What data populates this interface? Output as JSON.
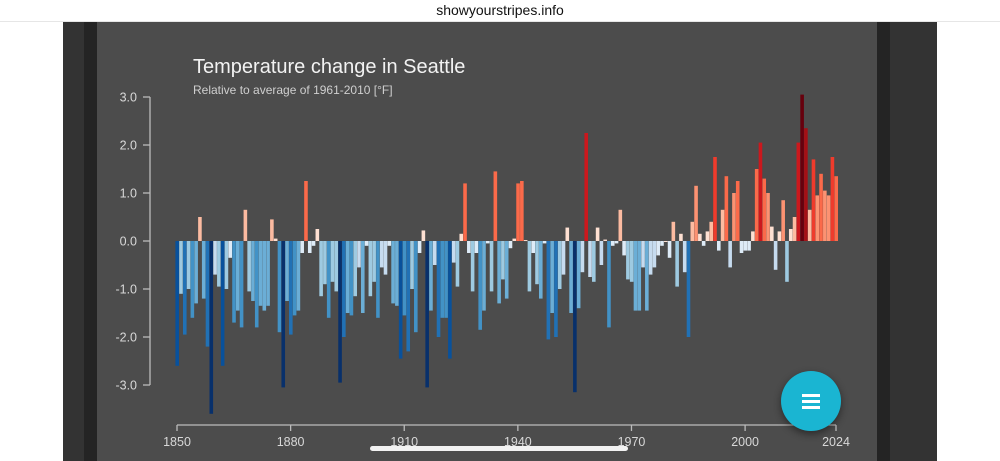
{
  "browser": {
    "url": "showyourstripes.info"
  },
  "chart_data": {
    "type": "bar",
    "title": "Temperature change in Seattle",
    "subtitle": "Relative to average of 1961-2010  [°F]",
    "xlabel": "",
    "ylabel": "",
    "x_range": [
      1850,
      2024
    ],
    "ylim": [
      -3.5,
      3.1
    ],
    "y_ticks": [
      "3.0",
      "2.0",
      "1.0",
      "0.0",
      "-1.0",
      "-2.0",
      "-3.0"
    ],
    "x_ticks": [
      "1850",
      "1880",
      "1910",
      "1940",
      "1970",
      "2000",
      "2024"
    ],
    "grid": false,
    "colormap": {
      "cold_dark": "#08306b",
      "cold_light": "#deebf7",
      "warm_light": "#fee0d2",
      "warm_dark": "#67000d"
    },
    "values": [
      -2.6,
      -1.1,
      -1.95,
      -1.0,
      -1.6,
      -1.3,
      0.5,
      -1.2,
      -2.2,
      -3.6,
      -0.7,
      -0.95,
      -2.6,
      -1.0,
      -0.35,
      -1.7,
      -1.45,
      -1.8,
      0.65,
      -1.05,
      -1.25,
      -1.8,
      -1.35,
      -1.45,
      -1.35,
      0.45,
      0.05,
      -1.9,
      -3.05,
      -1.25,
      -1.95,
      -1.55,
      -1.45,
      -0.25,
      1.25,
      -0.25,
      -0.1,
      0.25,
      -1.15,
      -0.9,
      -1.6,
      -0.85,
      -1.05,
      -2.95,
      -2.0,
      -1.5,
      -1.55,
      -1.15,
      -0.55,
      -1.5,
      -0.1,
      -1.15,
      -0.85,
      -1.6,
      -0.55,
      -0.7,
      -0.1,
      -1.3,
      -1.35,
      -2.45,
      -1.55,
      -2.3,
      -1.0,
      -1.9,
      -0.25,
      0.22,
      -3.05,
      -1.45,
      -0.5,
      -2.0,
      -1.6,
      -1.6,
      -2.45,
      -0.45,
      -0.95,
      0.15,
      1.2,
      -0.25,
      -1.05,
      -0.25,
      -1.85,
      -1.45,
      -0.05,
      -1.05,
      1.45,
      -1.3,
      -0.8,
      -1.2,
      -0.15,
      0.05,
      1.2,
      1.25,
      0.02,
      -1.05,
      -0.25,
      -0.9,
      -1.2,
      -0.05,
      -2.05,
      -1.5,
      -2.0,
      -1.0,
      -0.7,
      0.28,
      -1.5,
      -3.15,
      -1.4,
      -0.65,
      2.25,
      -0.75,
      -0.85,
      0.28,
      -0.5,
      0.03,
      -1.8,
      -0.1,
      -0.05,
      0.65,
      -0.3,
      -0.8,
      -0.85,
      -1.45,
      -1.45,
      -0.55,
      -1.45,
      -0.7,
      -0.55,
      -0.3,
      -0.1,
      0.0,
      -0.35,
      0.4,
      -0.95,
      0.15,
      -0.65,
      -2.0,
      0.4,
      1.15,
      0.15,
      -0.1,
      0.2,
      0.4,
      1.75,
      -0.2,
      0.65,
      1.35,
      -0.55,
      1.0,
      1.25,
      -0.25,
      -0.2,
      -0.2,
      0.2,
      1.5,
      2.05,
      1.3,
      1.0,
      0.3,
      -0.6,
      0.2,
      0.85,
      -0.85,
      0.25,
      0.5,
      2.05,
      3.05,
      2.35,
      0.65,
      1.7,
      0.95,
      1.4,
      1.05,
      0.95,
      1.75,
      1.35
    ]
  },
  "fab": {
    "icon": "menu-icon",
    "color": "#1ab5d2"
  }
}
